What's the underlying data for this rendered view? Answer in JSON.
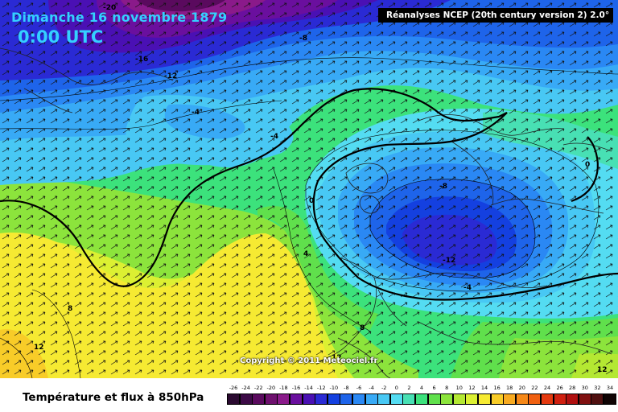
{
  "header": {
    "date": "Dimanche 16 novembre 1879",
    "time": "0:00 UTC",
    "source": "Réanalyses NCEP (20th century version 2) 2.0°"
  },
  "copyright": "Copyright © 2011 Meteociel.fr",
  "legend": {
    "title": "Température et flux à 850hPa",
    "values": [
      "-26",
      "-24",
      "-22",
      "-20",
      "-18",
      "-16",
      "-14",
      "-12",
      "-10",
      "-8",
      "-6",
      "-4",
      "-2",
      "0",
      "2",
      "4",
      "6",
      "8",
      "10",
      "12",
      "14",
      "16",
      "18",
      "20",
      "22",
      "24",
      "26",
      "28",
      "30",
      "32",
      "34"
    ],
    "colors": [
      "#2a0a30",
      "#3c0a46",
      "#5a0a5e",
      "#6e106e",
      "#8a1a8a",
      "#6a0f9e",
      "#4a10b4",
      "#2a2ad4",
      "#1440e0",
      "#1e64ea",
      "#2a88f4",
      "#38aaf6",
      "#48c8f4",
      "#54dcf2",
      "#48e0b4",
      "#3ce27c",
      "#60e04c",
      "#8ce43c",
      "#b4e832",
      "#dcf032",
      "#f6ea32",
      "#f8cc28",
      "#f8aa20",
      "#f68818",
      "#f06010",
      "#e43a10",
      "#d02010",
      "#b01010",
      "#801010",
      "#501010",
      "#100404"
    ]
  },
  "contour_labels": [
    "-20",
    "-16",
    "-12",
    "-8",
    "-4",
    "-4",
    "0",
    "-8",
    "-12",
    "-4",
    "0",
    "4",
    "8",
    "8",
    "12",
    "12",
    "12"
  ]
}
